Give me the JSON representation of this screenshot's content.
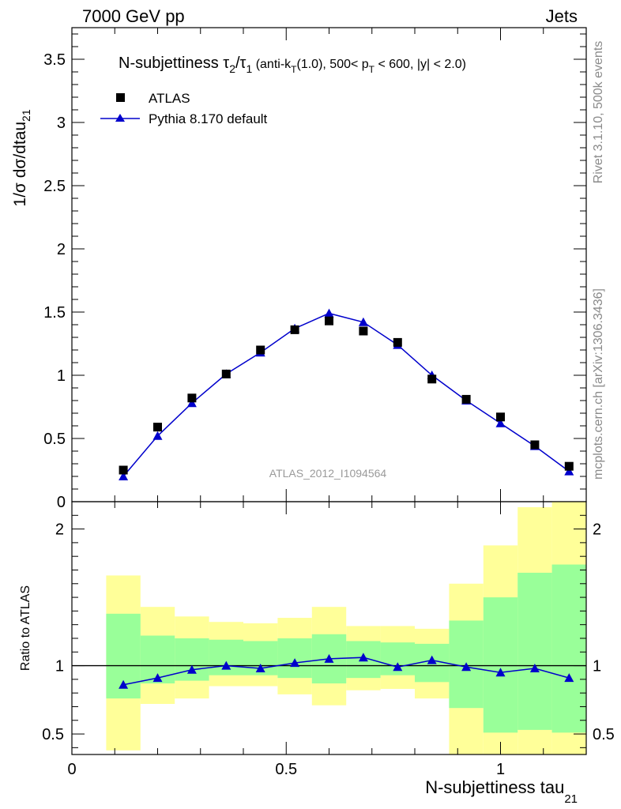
{
  "header": {
    "left": "7000 GeV pp",
    "right": "Jets"
  },
  "side_labels": {
    "rivet": "Rivet 3.1.10,  500k events",
    "mcplots": "mcplots.cern.ch [arXiv:1306.3436]"
  },
  "analysis_id": "ATLAS_2012_I1094564",
  "colors": {
    "data": "#000000",
    "mc": "#0000cc",
    "band_inner": "#99ff99",
    "band_outer": "#ffff99"
  },
  "chart_data": [
    {
      "type": "scatter",
      "panel": "main",
      "title": "N-subjettiness τ2/τ1 (anti-kT(1.0), 500< pT < 600, |y| < 2.0)",
      "title_parts": {
        "main": "N-subjettiness τ",
        "sub1": "2",
        "slash": "/τ",
        "sub2": "1",
        "cuts_a": " (anti-k",
        "cuts_sub": "T",
        "cuts_b": "(1.0), 500< p",
        "cuts_sub2": "T",
        "cuts_c": " < 600, |y| < 2.0)"
      },
      "ylabel": "1/σ dσ/dtau21",
      "ylabel_parts": {
        "main": "1/σ dσ/dtau",
        "sub": "21"
      },
      "xlim": [
        0,
        1.2
      ],
      "ylim": [
        0,
        3.75
      ],
      "y_ticks": [
        0,
        0.5,
        1,
        1.5,
        2,
        2.5,
        3,
        3.5
      ],
      "y_tick_labels": [
        "0",
        "0.5",
        "1",
        "1.5",
        "2",
        "2.5",
        "3",
        "3.5"
      ],
      "legend_position": "top-left",
      "series": [
        {
          "name": "ATLAS",
          "marker": "square",
          "x": [
            0.12,
            0.2,
            0.28,
            0.36,
            0.44,
            0.52,
            0.6,
            0.68,
            0.76,
            0.84,
            0.92,
            1.0,
            1.08,
            1.16
          ],
          "y": [
            0.25,
            0.59,
            0.82,
            1.01,
            1.2,
            1.36,
            1.43,
            1.35,
            1.26,
            0.97,
            0.81,
            0.67,
            0.45,
            0.28
          ]
        },
        {
          "name": "Pythia 8.170 default",
          "marker": "triangle",
          "x": [
            0.12,
            0.2,
            0.28,
            0.36,
            0.44,
            0.52,
            0.6,
            0.68,
            0.76,
            0.84,
            0.92,
            1.0,
            1.08,
            1.16
          ],
          "y": [
            0.2,
            0.52,
            0.78,
            1.01,
            1.18,
            1.37,
            1.49,
            1.42,
            1.24,
            1.0,
            0.8,
            0.62,
            0.44,
            0.24
          ]
        }
      ]
    },
    {
      "type": "line",
      "panel": "ratio",
      "xlabel": "N-subjettiness tau21",
      "xlabel_parts": {
        "main": "N-subjettiness tau",
        "sub": "21"
      },
      "ylabel": "Ratio to ATLAS",
      "xlim": [
        0,
        1.2
      ],
      "ylim": [
        0.35,
        2.2
      ],
      "x_ticks": [
        0,
        0.5,
        1
      ],
      "x_tick_labels": [
        "0",
        "0.5",
        "1"
      ],
      "y_ticks": [
        0.5,
        1,
        2
      ],
      "y_tick_labels": [
        "0.5",
        "1",
        "2"
      ],
      "reference_line": 1,
      "bins": [
        {
          "lo": 0.08,
          "hi": 0.16,
          "inner": [
            0.76,
            1.38
          ],
          "outer": [
            0.38,
            1.66
          ]
        },
        {
          "lo": 0.16,
          "hi": 0.24,
          "inner": [
            0.87,
            1.22
          ],
          "outer": [
            0.72,
            1.43
          ]
        },
        {
          "lo": 0.24,
          "hi": 0.32,
          "inner": [
            0.89,
            1.2
          ],
          "outer": [
            0.76,
            1.36
          ]
        },
        {
          "lo": 0.32,
          "hi": 0.4,
          "inner": [
            0.93,
            1.19
          ],
          "outer": [
            0.85,
            1.32
          ]
        },
        {
          "lo": 0.4,
          "hi": 0.48,
          "inner": [
            0.93,
            1.18
          ],
          "outer": [
            0.85,
            1.31
          ]
        },
        {
          "lo": 0.48,
          "hi": 0.56,
          "inner": [
            0.91,
            1.2
          ],
          "outer": [
            0.79,
            1.35
          ]
        },
        {
          "lo": 0.56,
          "hi": 0.64,
          "inner": [
            0.87,
            1.23
          ],
          "outer": [
            0.71,
            1.43
          ]
        },
        {
          "lo": 0.64,
          "hi": 0.72,
          "inner": [
            0.91,
            1.18
          ],
          "outer": [
            0.82,
            1.29
          ]
        },
        {
          "lo": 0.72,
          "hi": 0.8,
          "inner": [
            0.93,
            1.17
          ],
          "outer": [
            0.83,
            1.29
          ]
        },
        {
          "lo": 0.8,
          "hi": 0.88,
          "inner": [
            0.88,
            1.16
          ],
          "outer": [
            0.76,
            1.27
          ]
        },
        {
          "lo": 0.88,
          "hi": 0.96,
          "inner": [
            0.69,
            1.33
          ],
          "outer": [
            0.35,
            1.6
          ]
        },
        {
          "lo": 0.96,
          "hi": 1.04,
          "inner": [
            0.51,
            1.5
          ],
          "outer": [
            0.35,
            1.88
          ]
        },
        {
          "lo": 1.04,
          "hi": 1.12,
          "inner": [
            0.53,
            1.68
          ],
          "outer": [
            0.35,
            2.16
          ]
        },
        {
          "lo": 1.12,
          "hi": 1.2,
          "inner": [
            0.51,
            1.74
          ],
          "outer": [
            0.35,
            2.2
          ]
        }
      ],
      "series": [
        {
          "name": "Pythia 8.170 default",
          "x": [
            0.12,
            0.2,
            0.28,
            0.36,
            0.44,
            0.52,
            0.6,
            0.68,
            0.76,
            0.84,
            0.92,
            1.0,
            1.08,
            1.16
          ],
          "y": [
            0.86,
            0.91,
            0.97,
            1.0,
            0.98,
            1.02,
            1.05,
            1.06,
            0.99,
            1.04,
            0.99,
            0.95,
            0.98,
            0.91
          ]
        }
      ]
    }
  ]
}
